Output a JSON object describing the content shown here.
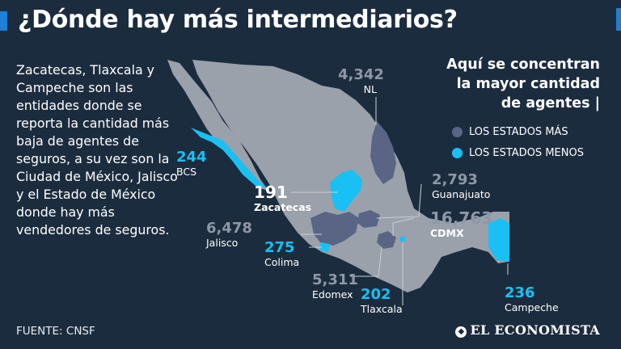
{
  "header": {
    "title": "¿Dónde hay más intermediarios?"
  },
  "intro": {
    "text": "Zacatecas, Tlaxcala y Campeche son las entidades donde se reporta la cantidad más baja de agentes de seguros, a su vez son la Ciudad de México, Jalisco y el Estado de México donde hay más vendedores de seguros."
  },
  "legend": {
    "title_line1": "Aquí se concentran",
    "title_line2": "la mayor cantidad",
    "title_line3": "de agentes |",
    "items": [
      {
        "label": "LOS ESTADOS MÁS",
        "color": "#5a6585"
      },
      {
        "label": "LOS ESTADOS MENOS",
        "color": "#19c0f3"
      }
    ]
  },
  "states": [
    {
      "name": "NL",
      "value": "4,342",
      "group": "mas"
    },
    {
      "name": "BCS",
      "value": "244",
      "group": "menos"
    },
    {
      "name": "Zacatecas",
      "value": "191",
      "group": "menos"
    },
    {
      "name": "Guanajuato",
      "value": "2,793",
      "group": "mas"
    },
    {
      "name": "Jalisco",
      "value": "6,478",
      "group": "mas"
    },
    {
      "name": "CDMX",
      "value": "16,763",
      "group": "mas"
    },
    {
      "name": "Colima",
      "value": "275",
      "group": "menos"
    },
    {
      "name": "Edomex",
      "value": "5,311",
      "group": "mas"
    },
    {
      "name": "Tlaxcala",
      "value": "202",
      "group": "menos"
    },
    {
      "name": "Campeche",
      "value": "236",
      "group": "menos"
    }
  ],
  "colors": {
    "background": "#1c2c3f",
    "map_base": "#9aa1ab",
    "mas": "#5a6585",
    "menos": "#19c0f3",
    "accent": "#1e7fd6"
  },
  "footer": {
    "source": "FUENTE: CNSF",
    "brand": "EL ECONOMISTA"
  }
}
